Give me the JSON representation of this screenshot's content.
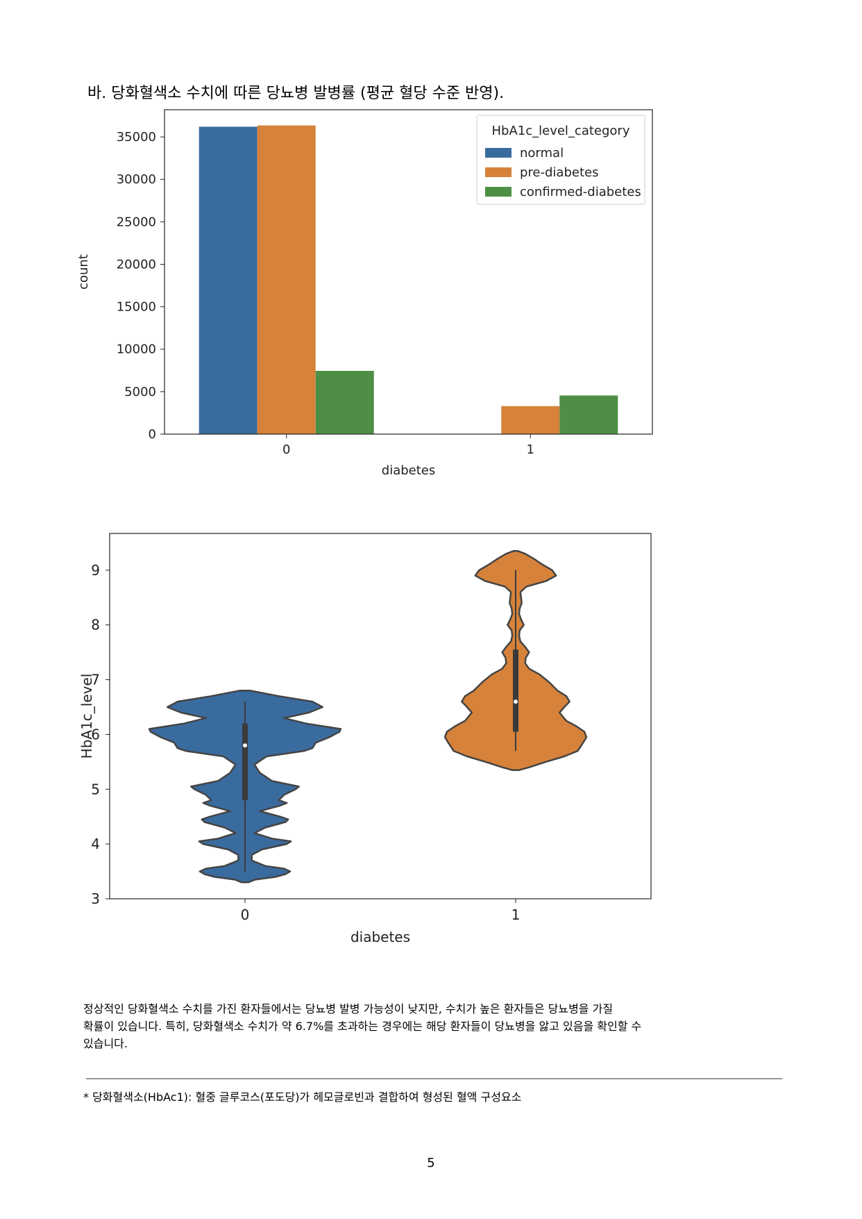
{
  "heading": "바. 당화혈색소 수치에 따른 당뇨병 발병률 (평균 혈당 수준 반영).",
  "chart_data": [
    {
      "type": "bar",
      "categories": [
        "0",
        "1"
      ],
      "series": [
        {
          "name": "normal",
          "color": "#3a6b9f",
          "values": [
            36200,
            0
          ]
        },
        {
          "name": "pre-diabetes",
          "color": "#d6823a",
          "values": [
            36350,
            3300
          ]
        },
        {
          "name": "confirmed-diabetes",
          "color": "#4e8f45",
          "values": [
            7450,
            4550
          ]
        }
      ],
      "xlabel": "diabetes",
      "ylabel": "count",
      "ylim": [
        0,
        38200
      ],
      "yticks": [
        0,
        5000,
        10000,
        15000,
        20000,
        25000,
        30000,
        35000
      ],
      "legend_title": "HbA1c_level_category",
      "legend_position": "top-right"
    },
    {
      "type": "violin",
      "categories": [
        "0",
        "1"
      ],
      "xlabel": "diabetes",
      "ylabel": "HbA1c_level",
      "ylim": [
        3,
        9.67
      ],
      "yticks": [
        3,
        4,
        5,
        6,
        7,
        8,
        9
      ],
      "series": [
        {
          "name": "0",
          "color": "#3a6b9f",
          "range": [
            3.3,
            6.8
          ],
          "median": 5.8,
          "q1": 4.8,
          "q3": 6.2,
          "whisker": [
            3.5,
            6.6
          ],
          "density": [
            [
              3.3,
              5
            ],
            [
              3.35,
              15
            ],
            [
              3.4,
              45
            ],
            [
              3.45,
              60
            ],
            [
              3.5,
              67
            ],
            [
              3.55,
              58
            ],
            [
              3.6,
              30
            ],
            [
              3.7,
              10
            ],
            [
              3.8,
              10
            ],
            [
              3.9,
              25
            ],
            [
              4.0,
              62
            ],
            [
              4.05,
              68
            ],
            [
              4.1,
              40
            ],
            [
              4.2,
              14
            ],
            [
              4.3,
              30
            ],
            [
              4.4,
              60
            ],
            [
              4.45,
              64
            ],
            [
              4.5,
              52
            ],
            [
              4.6,
              22
            ],
            [
              4.7,
              52
            ],
            [
              4.75,
              62
            ],
            [
              4.8,
              50
            ],
            [
              4.9,
              58
            ],
            [
              5.0,
              75
            ],
            [
              5.05,
              80
            ],
            [
              5.15,
              40
            ],
            [
              5.3,
              22
            ],
            [
              5.45,
              14
            ],
            [
              5.6,
              32
            ],
            [
              5.7,
              88
            ],
            [
              5.75,
              100
            ],
            [
              5.85,
              105
            ],
            [
              5.95,
              125
            ],
            [
              6.05,
              140
            ],
            [
              6.1,
              142
            ],
            [
              6.2,
              90
            ],
            [
              6.3,
              58
            ],
            [
              6.4,
              95
            ],
            [
              6.5,
              115
            ],
            [
              6.6,
              100
            ],
            [
              6.7,
              50
            ],
            [
              6.8,
              8
            ]
          ]
        },
        {
          "name": "1",
          "color": "#d6823a",
          "range": [
            5.35,
            9.35
          ],
          "median": 6.6,
          "q1": 6.05,
          "q3": 7.55,
          "whisker": [
            5.7,
            9.0
          ],
          "density": [
            [
              5.35,
              5
            ],
            [
              5.4,
              20
            ],
            [
              5.5,
              45
            ],
            [
              5.6,
              72
            ],
            [
              5.7,
              92
            ],
            [
              5.85,
              100
            ],
            [
              5.95,
              105
            ],
            [
              6.05,
              102
            ],
            [
              6.15,
              90
            ],
            [
              6.25,
              75
            ],
            [
              6.4,
              65
            ],
            [
              6.5,
              72
            ],
            [
              6.6,
              80
            ],
            [
              6.7,
              75
            ],
            [
              6.8,
              62
            ],
            [
              6.95,
              50
            ],
            [
              7.1,
              35
            ],
            [
              7.2,
              20
            ],
            [
              7.3,
              14
            ],
            [
              7.4,
              15
            ],
            [
              7.5,
              20
            ],
            [
              7.6,
              14
            ],
            [
              7.7,
              7
            ],
            [
              7.8,
              5
            ],
            [
              7.9,
              6
            ],
            [
              8.0,
              12
            ],
            [
              8.1,
              8
            ],
            [
              8.2,
              5
            ],
            [
              8.3,
              6
            ],
            [
              8.4,
              9
            ],
            [
              8.5,
              8
            ],
            [
              8.6,
              7
            ],
            [
              8.7,
              16
            ],
            [
              8.8,
              45
            ],
            [
              8.9,
              60
            ],
            [
              9.0,
              54
            ],
            [
              9.1,
              40
            ],
            [
              9.2,
              28
            ],
            [
              9.3,
              14
            ],
            [
              9.35,
              3
            ]
          ]
        }
      ]
    }
  ],
  "paragraph_lines": [
    "정상적인 당화혈색소 수치를 가진 환자들에서는 당뇨병 발병 가능성이 낮지만, 수치가 높은 환자들은 당뇨병을 가질",
    "확률이 있습니다. 특히, 당화혈색소 수치가 약 6.7%를 초과하는 경우에는 해당 환자들이 당뇨병을 앓고 있음을 확인할 수",
    "있습니다."
  ],
  "footnote": "* 당화혈색소(HbAc1): 혈중 글루코스(포도당)가 헤모글로빈과 결합하여 형성된 혈액 구성요소",
  "page_number": "5"
}
